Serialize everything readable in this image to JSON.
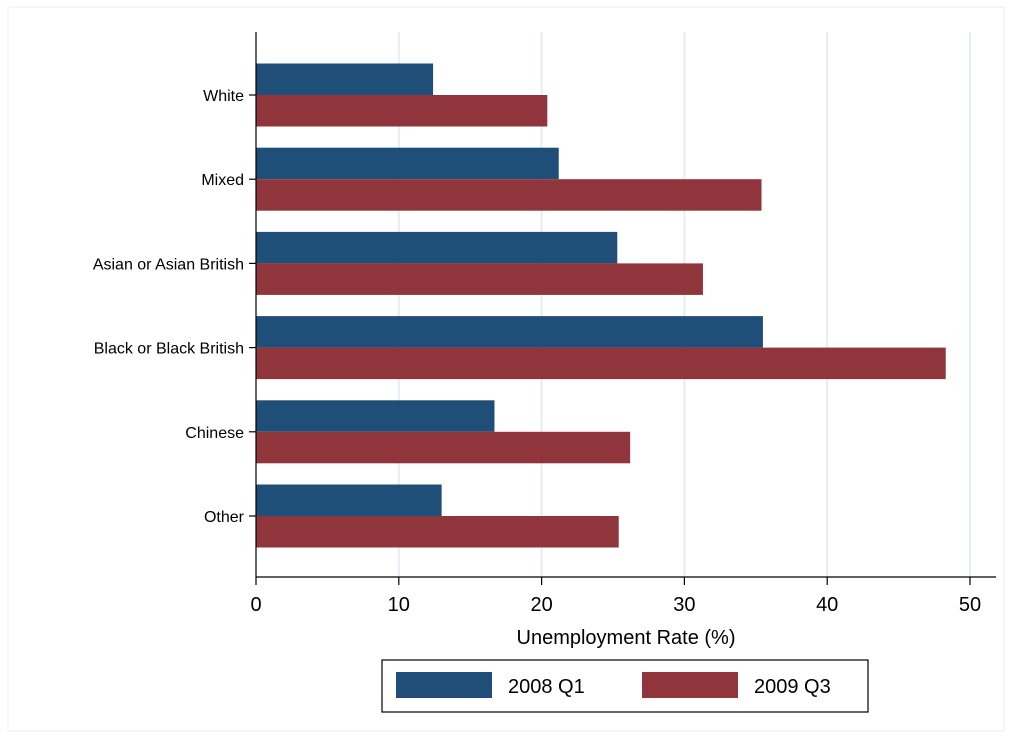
{
  "chart_data": {
    "type": "bar",
    "orientation": "horizontal",
    "categories": [
      "White",
      "Mixed",
      "Asian or Asian British",
      "Black or Black British",
      "Chinese",
      "Other"
    ],
    "series": [
      {
        "name": "2008 Q1",
        "color": "#1f4e79",
        "values": [
          12.4,
          21.2,
          25.3,
          35.5,
          16.7,
          13.0
        ]
      },
      {
        "name": "2009 Q3",
        "color": "#90353b",
        "values": [
          20.4,
          35.4,
          31.3,
          48.3,
          26.2,
          25.4
        ]
      }
    ],
    "xlabel": "Unemployment Rate (%)",
    "xlim": [
      0,
      50
    ],
    "xticks": [
      0,
      10,
      20,
      30,
      40,
      50
    ],
    "grid": "vertical",
    "legend_position": "bottom-center"
  },
  "colors": {
    "series_1": "#1f4e79",
    "series_2": "#90353b",
    "grid": "#e3eef0"
  }
}
